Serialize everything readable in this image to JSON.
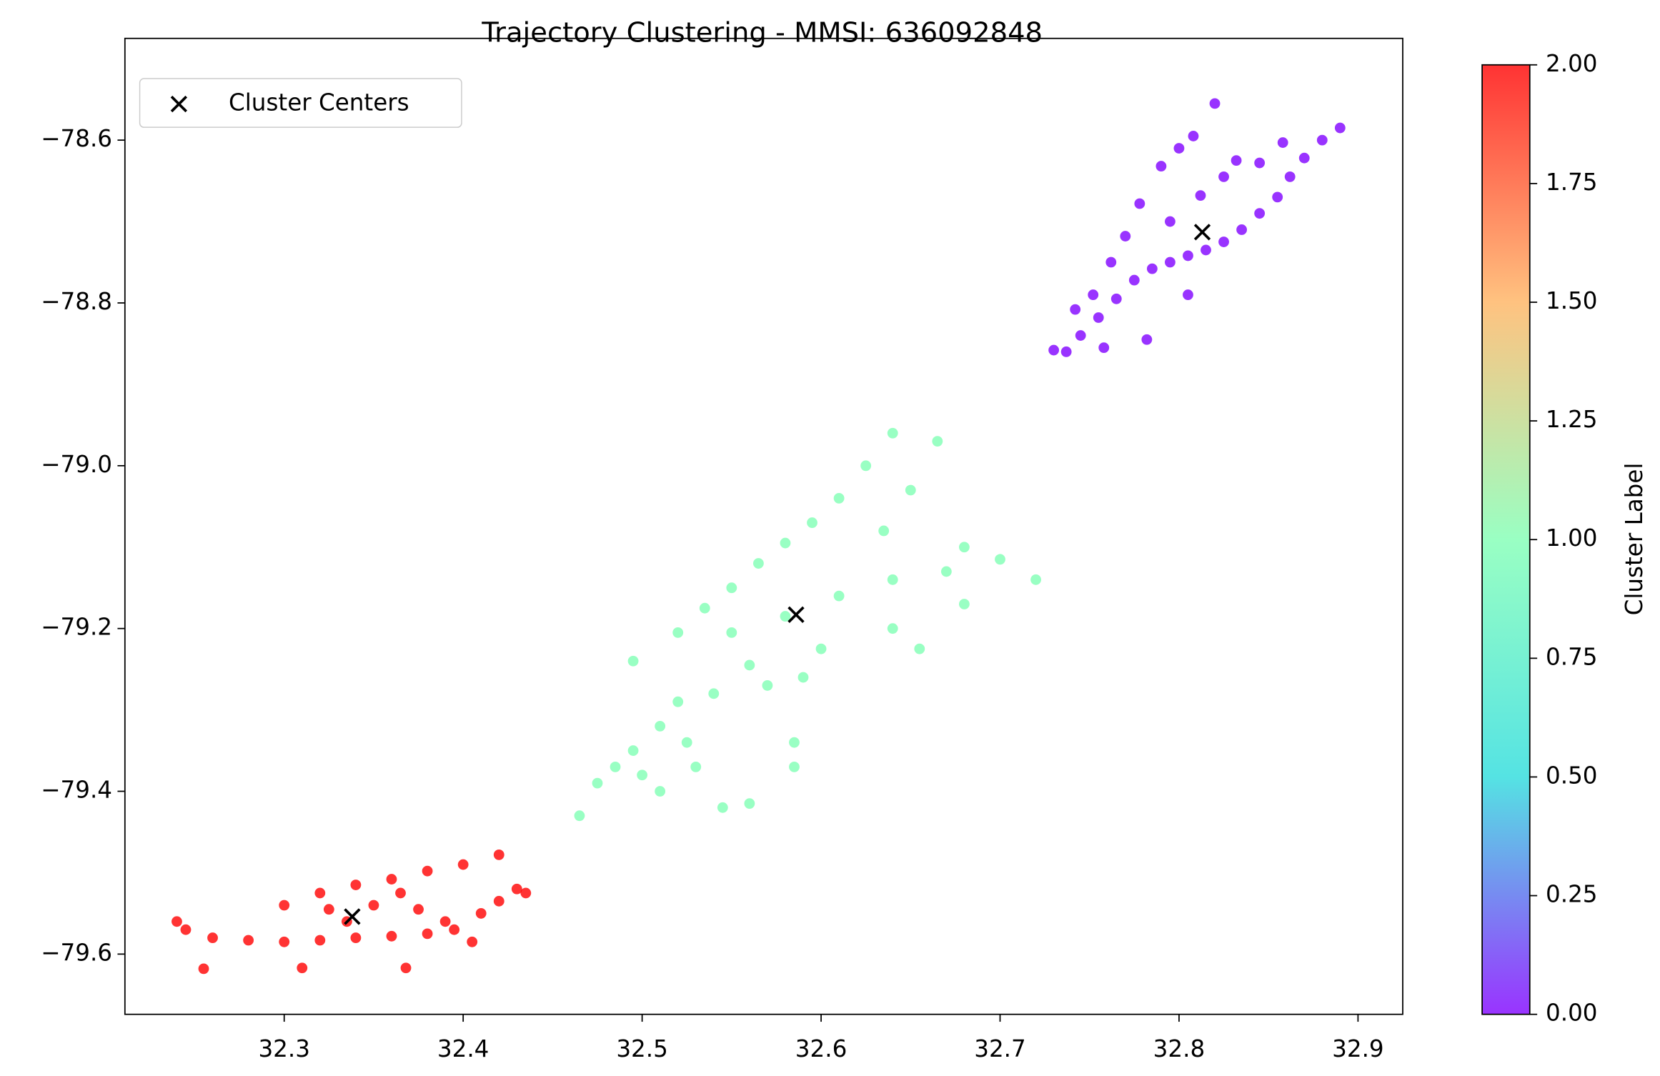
{
  "chart_data": {
    "type": "scatter",
    "title": "Trajectory Clustering - MMSI: 636092848",
    "xlim": [
      32.211,
      32.925
    ],
    "ylim": [
      -79.674,
      -78.475
    ],
    "xticks": [
      32.3,
      32.4,
      32.5,
      32.6,
      32.7,
      32.8,
      32.9
    ],
    "yticks": [
      {
        "value": -78.6,
        "label": "−78.6"
      },
      {
        "value": -78.8,
        "label": "−78.8"
      },
      {
        "value": -79.0,
        "label": "−79.0"
      },
      {
        "value": -79.2,
        "label": "−79.2"
      },
      {
        "value": -79.4,
        "label": "−79.4"
      },
      {
        "value": -79.6,
        "label": "−79.6"
      }
    ],
    "legend": "upper left",
    "series": [
      {
        "color": "#8000ff",
        "x": [
          32.737,
          32.745,
          32.755,
          32.765,
          32.775,
          32.785,
          32.795,
          32.805,
          32.815,
          32.825,
          32.835,
          32.845,
          32.855,
          32.862,
          32.87,
          32.88,
          32.89,
          32.73,
          32.742,
          32.752,
          32.758,
          32.762,
          32.77,
          32.778,
          32.782,
          32.79,
          32.795,
          32.8,
          32.805,
          32.808,
          32.812,
          32.82,
          32.825,
          32.832,
          32.845,
          32.858
        ],
        "y": [
          -78.86,
          -78.84,
          -78.818,
          -78.795,
          -78.772,
          -78.758,
          -78.75,
          -78.742,
          -78.735,
          -78.725,
          -78.71,
          -78.69,
          -78.67,
          -78.645,
          -78.622,
          -78.6,
          -78.585,
          -78.858,
          -78.808,
          -78.79,
          -78.855,
          -78.75,
          -78.718,
          -78.678,
          -78.845,
          -78.632,
          -78.7,
          -78.61,
          -78.79,
          -78.595,
          -78.668,
          -78.555,
          -78.645,
          -78.625,
          -78.628,
          -78.603
        ]
      },
      {
        "color": "#80ffb4",
        "x": [
          32.52,
          32.535,
          32.55,
          32.565,
          32.58,
          32.595,
          32.61,
          32.625,
          32.55,
          32.58,
          32.61,
          32.64,
          32.67,
          32.7,
          32.56,
          32.6,
          32.64,
          32.68,
          32.72,
          32.65,
          32.665,
          32.635,
          32.52,
          32.54,
          32.57,
          32.59,
          32.51,
          32.495,
          32.5,
          32.51,
          32.53,
          32.525,
          32.485,
          32.475,
          32.465,
          32.495,
          32.56,
          32.545,
          32.585,
          32.585,
          32.64,
          32.68,
          32.655
        ],
        "y": [
          -79.205,
          -79.175,
          -79.15,
          -79.12,
          -79.095,
          -79.07,
          -79.04,
          -79.0,
          -79.205,
          -79.185,
          -79.16,
          -79.14,
          -79.13,
          -79.115,
          -79.245,
          -79.225,
          -79.2,
          -79.17,
          -79.14,
          -79.03,
          -78.97,
          -79.08,
          -79.29,
          -79.28,
          -79.27,
          -79.26,
          -79.32,
          -79.35,
          -79.38,
          -79.4,
          -79.37,
          -79.34,
          -79.37,
          -79.39,
          -79.43,
          -79.24,
          -79.415,
          -79.42,
          -79.34,
          -79.37,
          -78.96,
          -79.1,
          -79.225
        ]
      },
      {
        "color": "#ff0000",
        "x": [
          32.245,
          32.26,
          32.28,
          32.3,
          32.32,
          32.34,
          32.36,
          32.38,
          32.395,
          32.3,
          32.32,
          32.34,
          32.36,
          32.38,
          32.4,
          32.42,
          32.325,
          32.335,
          32.35,
          32.365,
          32.375,
          32.39,
          32.41,
          32.42,
          32.43,
          32.435,
          32.255,
          32.31,
          32.368,
          32.405,
          32.24
        ],
        "y": [
          -79.57,
          -79.58,
          -79.583,
          -79.585,
          -79.583,
          -79.58,
          -79.578,
          -79.575,
          -79.57,
          -79.54,
          -79.525,
          -79.515,
          -79.508,
          -79.498,
          -79.49,
          -79.478,
          -79.545,
          -79.56,
          -79.54,
          -79.525,
          -79.545,
          -79.56,
          -79.55,
          -79.535,
          -79.52,
          -79.525,
          -79.618,
          -79.617,
          -79.617,
          -79.585,
          -79.56
        ]
      },
      {
        "name": "Cluster Centers",
        "color": "#000000",
        "marker": "x",
        "x": [
          32.813,
          32.586,
          32.338
        ],
        "y": [
          -78.713,
          -79.183,
          -79.554
        ]
      }
    ],
    "colorbar": {
      "label": "Cluster Label",
      "lim": [
        0,
        2
      ],
      "ticks": [
        {
          "value": 0,
          "label": "0.00"
        },
        {
          "value": 0.25,
          "label": "0.25"
        },
        {
          "value": 0.5,
          "label": "0.50"
        },
        {
          "value": 0.75,
          "label": "0.75"
        },
        {
          "value": 1,
          "label": "1.00"
        },
        {
          "value": 1.25,
          "label": "1.25"
        },
        {
          "value": 1.5,
          "label": "1.50"
        },
        {
          "value": 1.75,
          "label": "1.75"
        },
        {
          "value": 2,
          "label": "2.00"
        }
      ]
    }
  }
}
